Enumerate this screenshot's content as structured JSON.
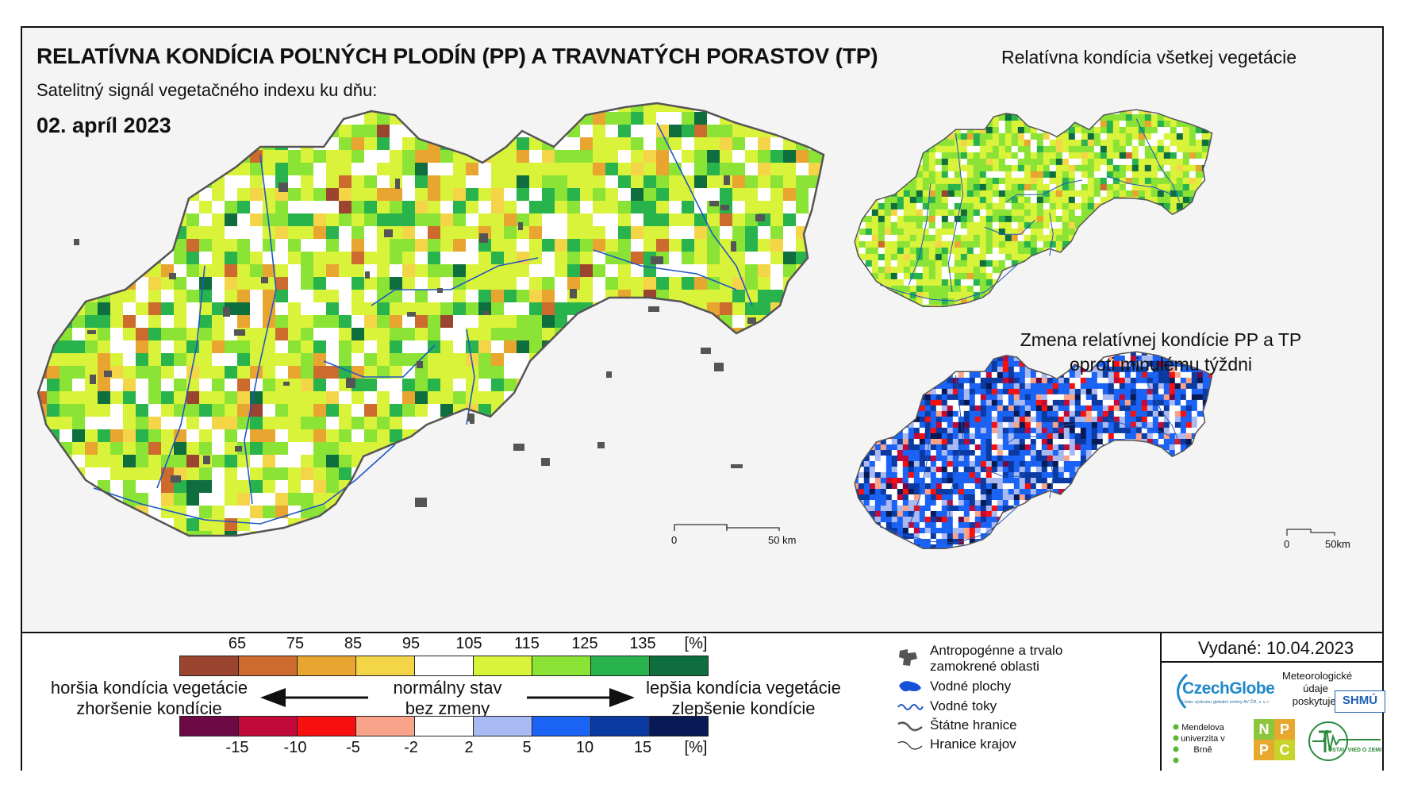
{
  "header": {
    "title": "RELATÍVNA KONDÍCIA POĽNÝCH PLODÍN (PP) A TRAVNATÝCH PORASTOV (TP)",
    "subtitle": "Satelitný signál vegetačného indexu ku dňu:",
    "date": "02. apríl 2023"
  },
  "side": {
    "title1": "Relatívna kondícia všetkej vegetácie",
    "title2_line1": "Zmena relatívnej kondície PP a TP",
    "title2_line2": "oproti minulému týždni"
  },
  "scale_main": {
    "zero": "0",
    "max": "50 km"
  },
  "scale_small": {
    "zero": "0",
    "max": "50km"
  },
  "legend": {
    "condition_ticks": [
      "65",
      "75",
      "85",
      "95",
      "105",
      "115",
      "125",
      "135",
      "[%]"
    ],
    "condition_colors": [
      "#9b4430",
      "#cd6a2d",
      "#e8a52f",
      "#f5d548",
      "#ffffff",
      "#d9f23a",
      "#8be336",
      "#29b34d",
      "#0f6e3d"
    ],
    "change_ticks": [
      "-15",
      "-10",
      "-5",
      "-2",
      "2",
      "5",
      "10",
      "15",
      "[%]"
    ],
    "change_colors": [
      "#6d0a45",
      "#c20a3a",
      "#f7100f",
      "#f8a38a",
      "#ffffff",
      "#a9b9f1",
      "#1a63f5",
      "#0a3aa2",
      "#081a55"
    ],
    "worse_line1": "horšia kondícia vegetácie",
    "worse_line2": "zhoršenie kondície",
    "normal_line1": "normálny stav",
    "normal_line2": "bez zmeny",
    "better_line1": "lepšia kondícia vegetácie",
    "better_line2": "zlepšenie kondície"
  },
  "map_legend": {
    "items": [
      {
        "label": "Antropogénne a trvalo zamokrené oblasti",
        "icon": "urban-area-icon"
      },
      {
        "label": "Vodné plochy",
        "icon": "water-body-icon"
      },
      {
        "label": "Vodné toky",
        "icon": "river-icon"
      },
      {
        "label": "Štátne hranice",
        "icon": "state-border-icon"
      },
      {
        "label": "Hranice krajov",
        "icon": "region-border-icon"
      }
    ]
  },
  "footer": {
    "issued": "Vydané: 10.04.2023",
    "czechglobe": "CzechGlobe",
    "czechglobe_sub": "Ústav výzkumu globální změny AV ČR, v. v. i.",
    "meteo": "Meteorologické údaje poskytuje:",
    "shmu": "SHMÚ",
    "mendel": "Mendelova univerzita v Brně",
    "nppc": [
      "N",
      "P",
      "P",
      "C"
    ],
    "uvz": "ÚSTAV VIED O ZEMI"
  },
  "colors": {
    "urban": "#555555",
    "river": "#1f57c4",
    "lake": "#1552d6",
    "border": "#555555"
  }
}
